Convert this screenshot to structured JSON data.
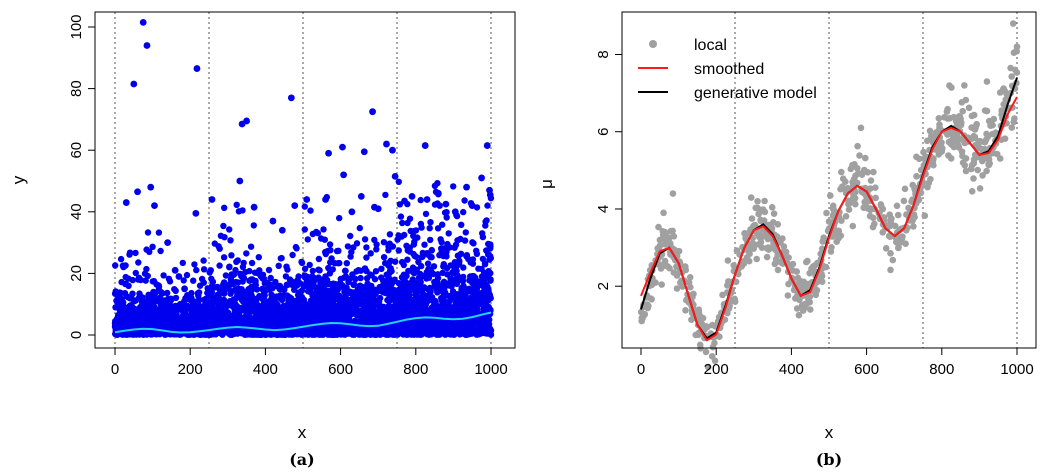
{
  "chart_data": [
    {
      "panel": "(a)",
      "type": "scatter",
      "caption": "(a)",
      "xlabel": "x",
      "ylabel": "y",
      "xlim": [
        0,
        1000
      ],
      "ylim": [
        0,
        100
      ],
      "xticks": [
        0,
        200,
        400,
        600,
        800,
        1000
      ],
      "yticks": [
        0,
        20,
        40,
        60,
        80,
        100
      ],
      "vlines": [
        0,
        250,
        500,
        750,
        1000
      ],
      "grid": false,
      "colors": {
        "points": "#0000ee",
        "curve": "#22d3ff",
        "vline": "#555555"
      },
      "series": [
        {
          "kind": "points",
          "points": [
            [
              75,
              101.5
            ],
            [
              85,
              94
            ],
            [
              50,
              81.5
            ],
            [
              218,
              86.5
            ],
            [
              469,
              77
            ],
            [
              685,
              72.5
            ],
            [
              350,
              69.5
            ],
            [
              338,
              68.5
            ],
            [
              722,
              62
            ],
            [
              825,
              61.5
            ],
            [
              990,
              61.5
            ],
            [
              738,
              60
            ],
            [
              663,
              59.5
            ],
            [
              605,
              61
            ],
            [
              568,
              59
            ],
            [
              608,
              52
            ],
            [
              745,
              51.5
            ],
            [
              332,
              50
            ],
            [
              935,
              48
            ],
            [
              998,
              45.5
            ],
            [
              770,
              43.5
            ],
            [
              258,
              44
            ],
            [
              510,
              44
            ],
            [
              478,
              42
            ],
            [
              215,
              39.5
            ],
            [
              370,
              41.5
            ],
            [
              690,
              41.5
            ],
            [
              880,
              42.5
            ],
            [
              30,
              43
            ],
            [
              60,
              46.5
            ],
            [
              95,
              48
            ],
            [
              105,
              42
            ],
            [
              160,
              21
            ],
            [
              170,
              19
            ],
            [
              185,
              15
            ],
            [
              140,
              30
            ],
            [
              420,
              37
            ],
            [
              445,
              34
            ],
            [
              560,
              44
            ],
            [
              630,
              40
            ],
            [
              655,
              45
            ],
            [
              700,
              41
            ],
            [
              790,
              45
            ],
            [
              830,
              44
            ],
            [
              860,
              46
            ],
            [
              905,
              40
            ],
            [
              950,
              42
            ],
            [
              975,
              51
            ],
            [
              996,
              47
            ]
          ]
        },
        {
          "kind": "curve",
          "points": [
            [
              0,
              0.9
            ],
            [
              25,
              1.4
            ],
            [
              50,
              1.8
            ],
            [
              75,
              2.0
            ],
            [
              100,
              1.9
            ],
            [
              125,
              1.5
            ],
            [
              150,
              1.0
            ],
            [
              175,
              0.8
            ],
            [
              200,
              0.9
            ],
            [
              225,
              1.2
            ],
            [
              250,
              1.6
            ],
            [
              275,
              2.0
            ],
            [
              300,
              2.4
            ],
            [
              325,
              2.6
            ],
            [
              350,
              2.4
            ],
            [
              375,
              2.1
            ],
            [
              400,
              1.8
            ],
            [
              425,
              1.6
            ],
            [
              450,
              1.8
            ],
            [
              475,
              2.2
            ],
            [
              500,
              2.7
            ],
            [
              525,
              3.2
            ],
            [
              550,
              3.6
            ],
            [
              575,
              3.9
            ],
            [
              600,
              3.8
            ],
            [
              625,
              3.5
            ],
            [
              650,
              3.1
            ],
            [
              675,
              2.9
            ],
            [
              700,
              3.0
            ],
            [
              725,
              3.6
            ],
            [
              750,
              4.3
            ],
            [
              775,
              5.0
            ],
            [
              800,
              5.5
            ],
            [
              825,
              5.7
            ],
            [
              850,
              5.6
            ],
            [
              875,
              5.3
            ],
            [
              900,
              5.1
            ],
            [
              925,
              5.3
            ],
            [
              950,
              5.8
            ],
            [
              975,
              6.6
            ],
            [
              1000,
              7.3
            ]
          ]
        }
      ]
    },
    {
      "panel": "(b)",
      "type": "scatter",
      "caption": "(b)",
      "xlabel": "x",
      "ylabel": "μ",
      "xlim": [
        0,
        1000
      ],
      "ylim": [
        0.4,
        9.1
      ],
      "xticks": [
        0,
        200,
        400,
        600,
        800,
        1000
      ],
      "yticks": [
        2,
        4,
        6,
        8
      ],
      "vlines": [
        250,
        500,
        750,
        1000
      ],
      "grid": false,
      "legend": {
        "position": "top-left",
        "entries": [
          "local",
          "smoothed",
          "generative model"
        ]
      },
      "colors": {
        "local": "#a0a0a0",
        "smoothed": "#ff1a1a",
        "generative": "#000000",
        "vline": "#555555"
      },
      "series": [
        {
          "name": "generative model",
          "kind": "line",
          "points": [
            [
              0,
              1.4
            ],
            [
              25,
              2.2
            ],
            [
              50,
              2.85
            ],
            [
              75,
              3.0
            ],
            [
              100,
              2.6
            ],
            [
              125,
              1.8
            ],
            [
              150,
              1.0
            ],
            [
              175,
              0.65
            ],
            [
              200,
              0.8
            ],
            [
              225,
              1.5
            ],
            [
              250,
              2.3
            ],
            [
              275,
              3.0
            ],
            [
              300,
              3.45
            ],
            [
              325,
              3.6
            ],
            [
              350,
              3.35
            ],
            [
              375,
              2.8
            ],
            [
              400,
              2.2
            ],
            [
              425,
              1.75
            ],
            [
              450,
              1.9
            ],
            [
              475,
              2.5
            ],
            [
              500,
              3.3
            ],
            [
              525,
              3.95
            ],
            [
              550,
              4.4
            ],
            [
              575,
              4.6
            ],
            [
              600,
              4.45
            ],
            [
              625,
              4.0
            ],
            [
              650,
              3.5
            ],
            [
              675,
              3.3
            ],
            [
              700,
              3.5
            ],
            [
              725,
              4.1
            ],
            [
              750,
              4.9
            ],
            [
              775,
              5.6
            ],
            [
              800,
              6.0
            ],
            [
              825,
              6.15
            ],
            [
              850,
              6.0
            ],
            [
              875,
              5.7
            ],
            [
              900,
              5.4
            ],
            [
              925,
              5.5
            ],
            [
              950,
              5.9
            ],
            [
              975,
              6.7
            ],
            [
              1000,
              7.4
            ]
          ]
        },
        {
          "name": "smoothed",
          "kind": "line",
          "points": [
            [
              0,
              1.75
            ],
            [
              25,
              2.35
            ],
            [
              50,
              2.9
            ],
            [
              75,
              3.0
            ],
            [
              100,
              2.6
            ],
            [
              125,
              1.8
            ],
            [
              150,
              1.0
            ],
            [
              175,
              0.6
            ],
            [
              200,
              0.75
            ],
            [
              225,
              1.45
            ],
            [
              250,
              2.3
            ],
            [
              275,
              3.0
            ],
            [
              300,
              3.45
            ],
            [
              325,
              3.55
            ],
            [
              350,
              3.3
            ],
            [
              375,
              2.8
            ],
            [
              400,
              2.2
            ],
            [
              425,
              1.75
            ],
            [
              450,
              1.85
            ],
            [
              475,
              2.45
            ],
            [
              500,
              3.25
            ],
            [
              525,
              3.95
            ],
            [
              550,
              4.4
            ],
            [
              575,
              4.6
            ],
            [
              600,
              4.45
            ],
            [
              625,
              4.0
            ],
            [
              650,
              3.5
            ],
            [
              675,
              3.3
            ],
            [
              700,
              3.5
            ],
            [
              725,
              4.1
            ],
            [
              750,
              4.85
            ],
            [
              775,
              5.55
            ],
            [
              800,
              6.0
            ],
            [
              825,
              6.1
            ],
            [
              850,
              6.0
            ],
            [
              875,
              5.7
            ],
            [
              900,
              5.4
            ],
            [
              925,
              5.45
            ],
            [
              950,
              5.8
            ],
            [
              975,
              6.45
            ],
            [
              1000,
              6.9
            ]
          ]
        }
      ],
      "local_points": {
        "name": "local",
        "count": 800,
        "spread": 0.35,
        "outliers": [
          [
            585,
            6.1
          ],
          [
            990,
            8.8
          ],
          [
            1000,
            8.2
          ],
          [
            995,
            7.6
          ],
          [
            60,
            3.9
          ],
          [
            85,
            4.4
          ],
          [
            860,
            7.2
          ],
          [
            920,
            7.3
          ],
          [
            740,
            5.3
          ],
          [
            310,
            4.2
          ]
        ]
      }
    }
  ]
}
